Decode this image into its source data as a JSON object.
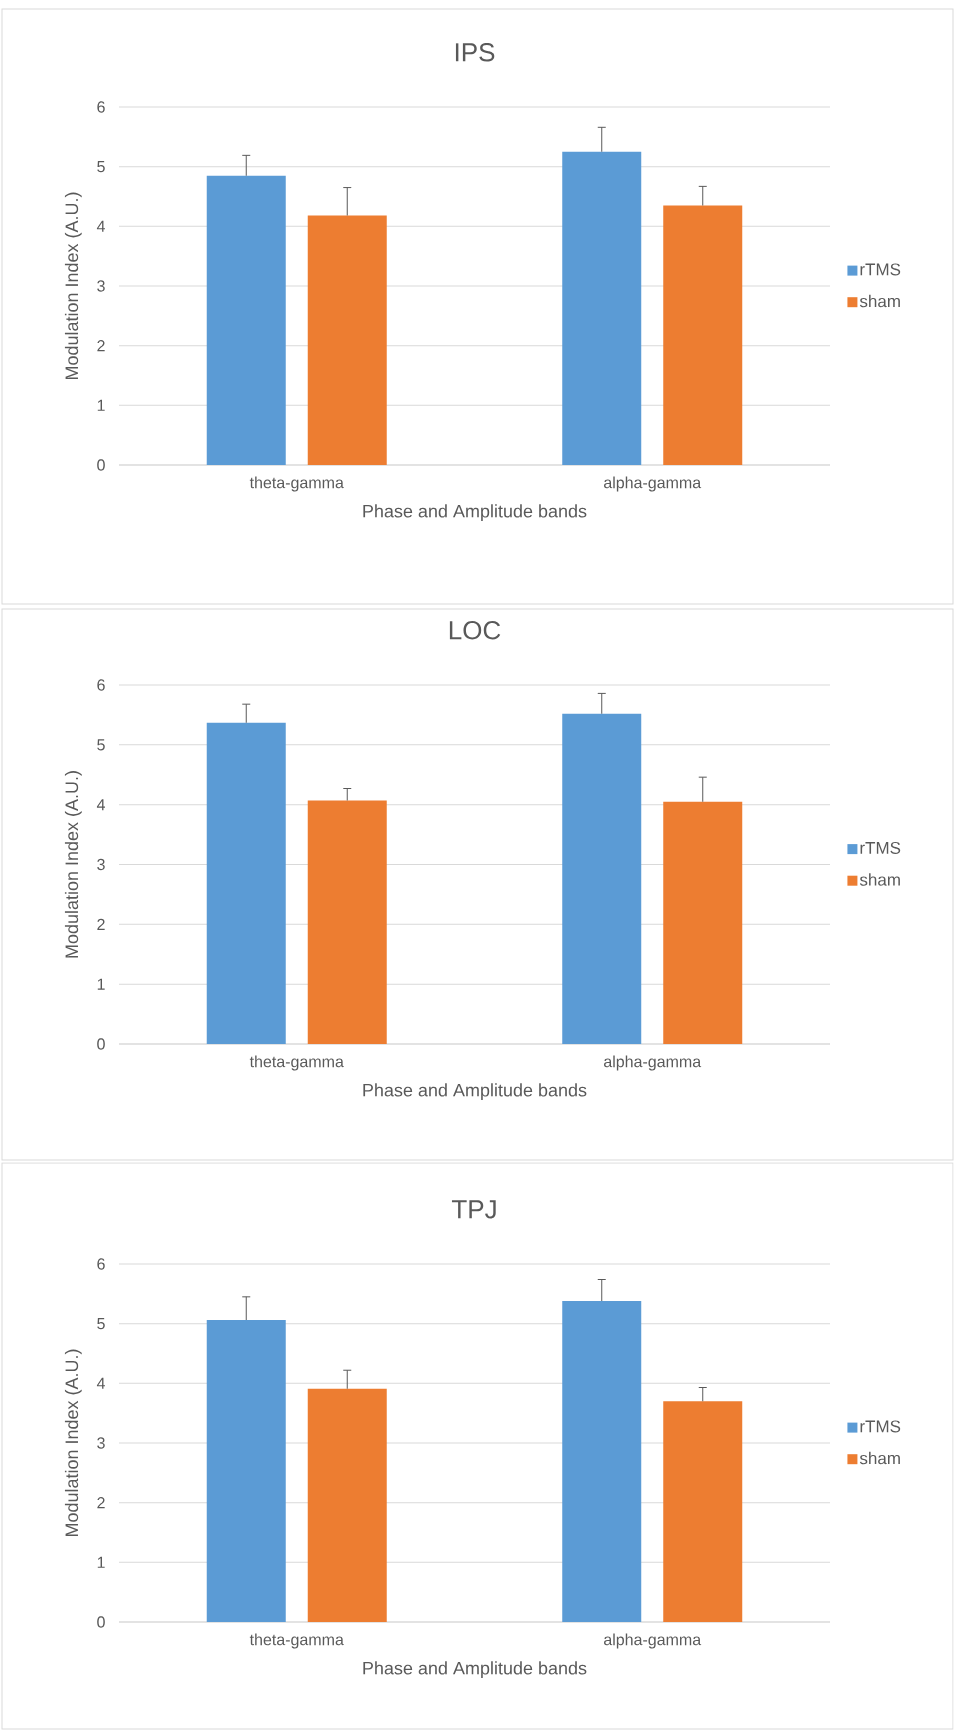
{
  "chart_data": [
    {
      "type": "bar",
      "title": "IPS",
      "xlabel": "Phase and Amplitude bands",
      "ylabel": "Modulation Index (A.U.)",
      "categories": [
        "theta-gamma",
        "alpha-gamma"
      ],
      "ylim": [
        0,
        6
      ],
      "yticks": [
        0,
        1,
        2,
        3,
        4,
        5,
        6
      ],
      "grid": "y",
      "legend": "right",
      "series": [
        {
          "name": "rTMS",
          "color": "#5b9bd5",
          "values": [
            4.85,
            5.25
          ],
          "errors": [
            [
              4.85,
              5.19
            ],
            [
              5.25,
              5.66
            ]
          ]
        },
        {
          "name": "sham",
          "color": "#ed7d31",
          "values": [
            4.18,
            4.35
          ],
          "errors": [
            [
              4.18,
              4.65
            ],
            [
              4.35,
              4.67
            ]
          ]
        }
      ]
    },
    {
      "type": "bar",
      "title": "LOC",
      "xlabel": "Phase and Amplitude bands",
      "ylabel": "Modulation Index (A.U.)",
      "categories": [
        "theta-gamma",
        "alpha-gamma"
      ],
      "ylim": [
        0,
        6
      ],
      "yticks": [
        0,
        1,
        2,
        3,
        4,
        5,
        6
      ],
      "grid": "y",
      "legend": "right",
      "series": [
        {
          "name": "rTMS",
          "color": "#5b9bd5",
          "values": [
            5.37,
            5.52
          ],
          "errors": [
            [
              5.37,
              5.68
            ],
            [
              5.52,
              5.86
            ]
          ]
        },
        {
          "name": "sham",
          "color": "#ed7d31",
          "values": [
            4.07,
            4.05
          ],
          "errors": [
            [
              4.07,
              4.27
            ],
            [
              4.05,
              4.46
            ]
          ]
        }
      ]
    },
    {
      "type": "bar",
      "title": "TPJ",
      "xlabel": "Phase and Amplitude bands",
      "ylabel": "Modulation Index (A.U.)",
      "categories": [
        "theta-gamma",
        "alpha-gamma"
      ],
      "ylim": [
        0,
        6
      ],
      "yticks": [
        0,
        1,
        2,
        3,
        4,
        5,
        6
      ],
      "grid": "y",
      "legend": "right",
      "series": [
        {
          "name": "rTMS",
          "color": "#5b9bd5",
          "values": [
            5.06,
            5.38
          ],
          "errors": [
            [
              5.06,
              5.45
            ],
            [
              5.38,
              5.74
            ]
          ]
        },
        {
          "name": "sham",
          "color": "#ed7d31",
          "values": [
            3.91,
            3.7
          ],
          "errors": [
            [
              3.91,
              4.22
            ],
            [
              3.7,
              3.93
            ]
          ]
        }
      ]
    }
  ]
}
